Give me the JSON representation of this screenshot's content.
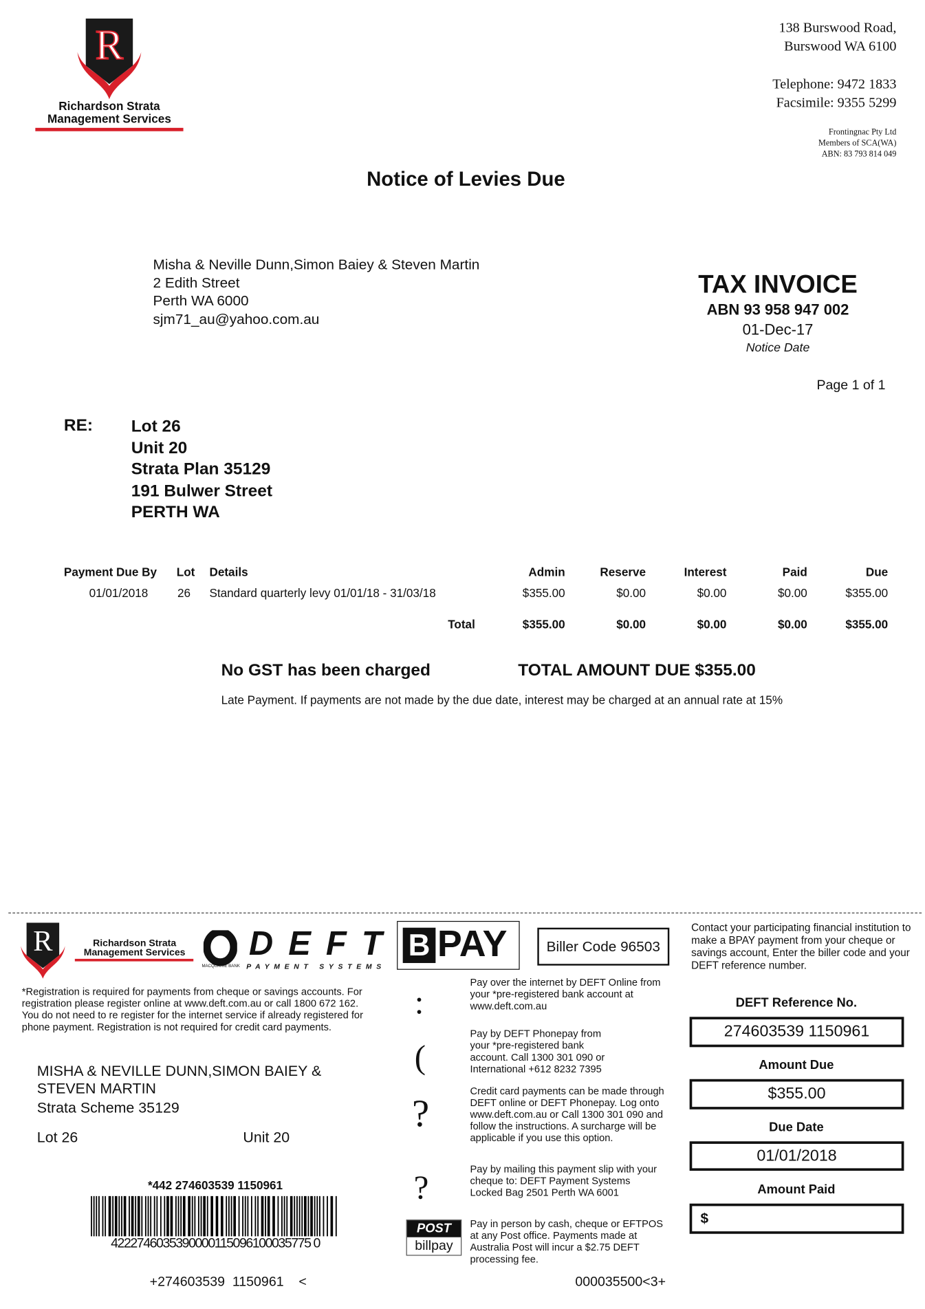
{
  "company": {
    "name_line1": "Richardson Strata",
    "name_line2": "Management Services",
    "logo_letter": "R",
    "address_line1": "138 Burswood Road,",
    "address_line2": "Burswood WA 6100",
    "telephone": "Telephone: 9472 1833",
    "facsimile": "Facsimile: 9355 5299",
    "legal1": "Frontingnac Pty Ltd",
    "legal2": "Members of SCA(WA)",
    "legal3": "ABN: 83 793 814 049"
  },
  "title": "Notice of Levies Due",
  "addressee": [
    "Misha & Neville Dunn,Simon Baiey & Steven Martin",
    "2 Edith Street",
    "Perth WA 6000",
    "sjm71_au@yahoo.com.au"
  ],
  "invoice": {
    "heading": "TAX INVOICE",
    "abn": "ABN 93 958 947 002",
    "date": "01-Dec-17",
    "date_label": "Notice Date",
    "page": "Page 1 of 1"
  },
  "re": {
    "label": "RE:",
    "lines": [
      "Lot 26",
      "Unit 20",
      "Strata Plan 35129",
      "191 Bulwer Street",
      "PERTH WA"
    ]
  },
  "table": {
    "headers": [
      "Payment Due By",
      "Lot",
      "Details",
      "Admin",
      "Reserve",
      "Interest",
      "Paid",
      "Due"
    ],
    "rows": [
      [
        "01/01/2018",
        "26",
        "Standard quarterly levy 01/01/18 - 31/03/18",
        "$355.00",
        "$0.00",
        "$0.00",
        "$0.00",
        "$355.00"
      ]
    ],
    "total_label": "Total",
    "totals": [
      "$355.00",
      "$0.00",
      "$0.00",
      "$0.00",
      "$355.00"
    ]
  },
  "gst_note": "No GST has been charged",
  "total_due": "TOTAL AMOUNT DUE $355.00",
  "late_note": "Late Payment. If payments are not made by the due date, interest may be charged at an annual rate at 15%",
  "slip": {
    "deft_logo": "DEFT",
    "deft_sub": "PAYMENT SYSTEMS",
    "bank": "MACQUARIE BANK",
    "bpay_logo": "PAY",
    "biller_code": "Biller Code 96503",
    "bpay_note": "Contact your participating financial institution to make a BPAY payment from your cheque or savings account, Enter the biller code and your DEFT reference number.",
    "registration": "*Registration is required for payments from cheque or savings accounts. For registration please register online at www.deft.com.au or call 1800 672 162. You do not need to re register for the internet service if already registered for phone payment. Registration is not required for credit card payments.",
    "name_line1": "MISHA & NEVILLE DUNN,SIMON BAIEY &",
    "name_line2": "STEVEN MARTIN",
    "scheme": "Strata Scheme 35129",
    "lot": "Lot 26",
    "unit": "Unit 20",
    "barcode_ref": "*442 274603539 1150961",
    "barcode_digits": "4222746035390000115096100035775 0",
    "ocr_left": "+274603539  1150961    <",
    "ocr_right": "000035500<3+",
    "methods": [
      {
        "icon": ":",
        "text": "Pay over the internet by DEFT Online from your *pre-registered bank account at www.deft.com.au"
      },
      {
        "icon": "(",
        "text": "Pay by DEFT Phonepay from your *pre-registered bank account. Call 1300 301 090 or International +612 8232 7395"
      },
      {
        "icon": "?",
        "text": "Credit card payments can be made through DEFT online or DEFT Phonepay. Log onto www.deft.com.au or Call 1300 301 090 and follow the instructions. A surcharge will be applicable if you use this option."
      },
      {
        "icon": "?",
        "text": "Pay by mailing this payment slip with your cheque to: DEFT Payment Systems Locked Bag 2501 Perth WA 6001"
      },
      {
        "icon": "POST billpay",
        "text": "Pay in person by cash, cheque or EFTPOS at any Post office. Payments made at Australia Post will incur a $2.75 DEFT processing fee."
      }
    ],
    "post_top": "POST",
    "post_bottom": "billpay",
    "ref_label": "DEFT Reference No.",
    "ref_value": "274603539 1150961",
    "amount_due_label": "Amount Due",
    "amount_due": "$355.00",
    "due_date_label": "Due Date",
    "due_date": "01/01/2018",
    "amount_paid_label": "Amount Paid",
    "amount_paid_prefix": "$"
  },
  "colors": {
    "brand_red": "#d8202a",
    "brand_black": "#1a1a1a"
  }
}
